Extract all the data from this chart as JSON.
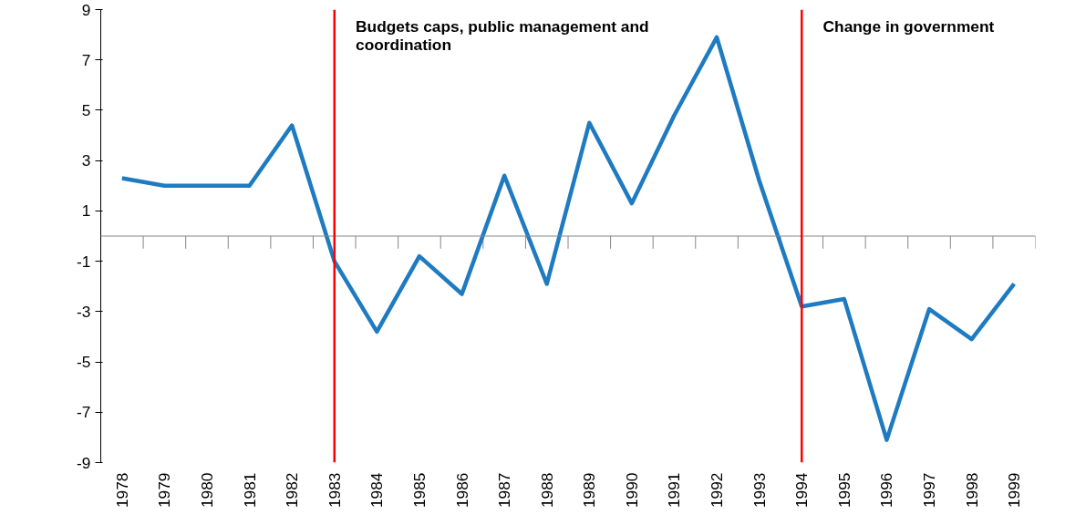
{
  "chart_data": {
    "type": "line",
    "categories": [
      "1978",
      "1979",
      "1980",
      "1981",
      "1982",
      "1983",
      "1984",
      "1985",
      "1986",
      "1987",
      "1988",
      "1989",
      "1990",
      "1991",
      "1992",
      "1993",
      "1994",
      "1995",
      "1996",
      "1997",
      "1998",
      "1999"
    ],
    "series": [
      {
        "color": "#1f7bc1",
        "values": [
          2.3,
          2.0,
          2.0,
          2.0,
          4.4,
          -1.0,
          -3.8,
          -0.8,
          -2.3,
          2.4,
          -1.9,
          4.5,
          1.3,
          4.8,
          7.9,
          2.2,
          -2.8,
          -2.5,
          -8.1,
          -2.9,
          -4.1,
          -1.9
        ]
      }
    ],
    "ylim": [
      -9,
      9
    ],
    "yticks": [
      -9,
      -7,
      -5,
      -3,
      -1,
      1,
      3,
      5,
      7,
      9
    ],
    "ref_lines": [
      {
        "axis": "x",
        "value": "1983",
        "label": "Budgets caps, public management and coordination",
        "color": "#ff0000"
      },
      {
        "axis": "x",
        "value": "1994",
        "label": "Change in government",
        "color": "#ff0000"
      }
    ],
    "grid": false,
    "marker": "none",
    "line_style": "solid"
  }
}
